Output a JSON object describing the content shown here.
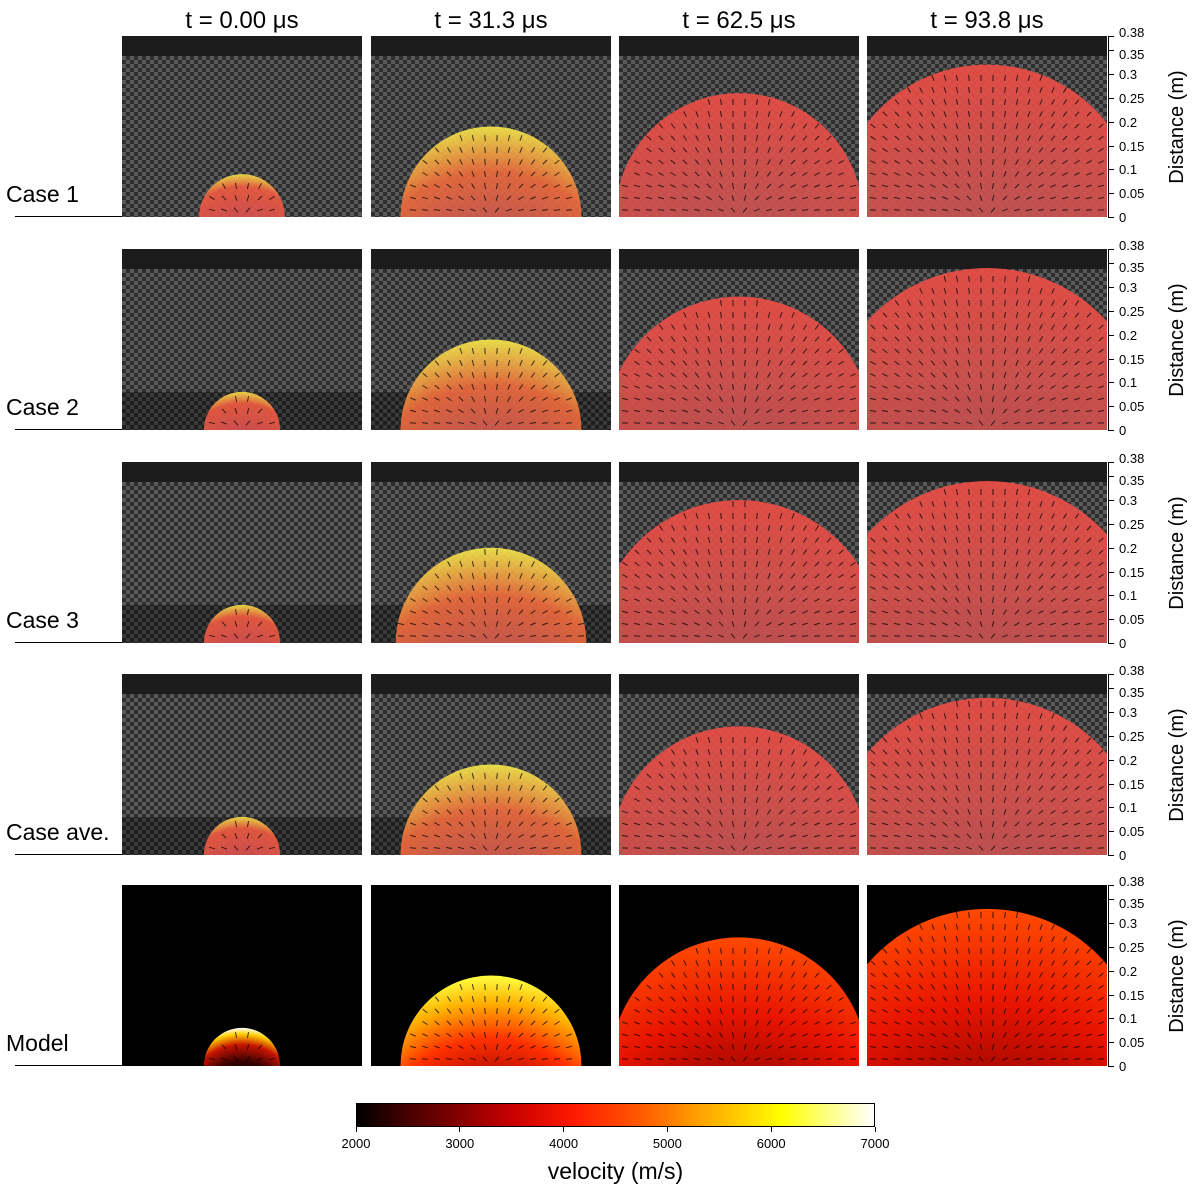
{
  "column_titles": [
    "t = 0.00 μs",
    "t = 31.3 μs",
    "t = 62.5 μs",
    "t = 93.8 μs"
  ],
  "row_labels": [
    "Case 1",
    "Case 2",
    "Case 3",
    "Case ave.",
    "Model"
  ],
  "y_axis": {
    "title": "Distance (m)",
    "ticks": [
      "0",
      "0.05",
      "0.1",
      "0.15",
      "0.2",
      "0.25",
      "0.3",
      "0.35",
      "0.38"
    ],
    "tick_values": [
      0,
      0.05,
      0.1,
      0.15,
      0.2,
      0.25,
      0.3,
      0.35,
      0.38
    ],
    "range": [
      0,
      0.38
    ]
  },
  "colorbar": {
    "title": "velocity (m/s)",
    "ticks": [
      "2000",
      "3000",
      "4000",
      "5000",
      "6000",
      "7000"
    ],
    "tick_values": [
      2000,
      3000,
      4000,
      5000,
      6000,
      7000
    ],
    "range": [
      2000,
      7000
    ],
    "colormap": "hot"
  },
  "front_radius_m": {
    "Case 1": [
      0.09,
      0.19,
      0.26,
      0.32
    ],
    "Case 2": [
      0.08,
      0.19,
      0.28,
      0.34
    ],
    "Case 3": [
      0.08,
      0.2,
      0.3,
      0.34
    ],
    "Case ave.": [
      0.08,
      0.19,
      0.27,
      0.33
    ],
    "Model": [
      0.08,
      0.19,
      0.27,
      0.33
    ]
  },
  "colors": {
    "model_background": "#000000",
    "experiment_background": "#4a4a4a",
    "overlay_red": "#e8413a",
    "overlay_yellow": "#f6e244"
  }
}
